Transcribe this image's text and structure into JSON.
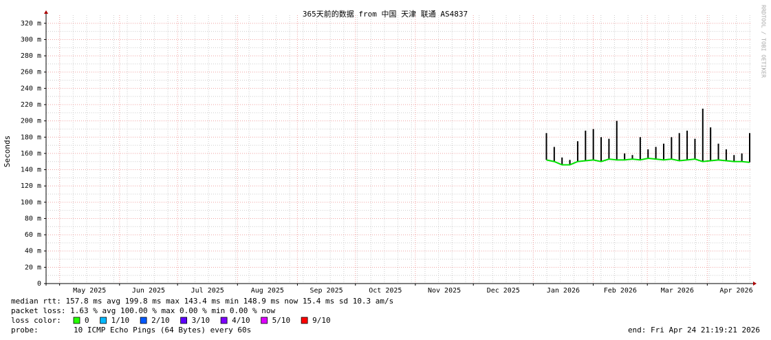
{
  "chart_data": {
    "type": "smokeping",
    "title": "365天前的数据 from 中国 天津 联通 AS4837",
    "y_label": "Seconds",
    "side_label": "RRDTOOL / TOBI OETIKER",
    "ylim": [
      0,
      0.33
    ],
    "yticks": [
      0,
      {
        "value": 0.02,
        "label": "20 m"
      },
      {
        "value": 0.04,
        "label": "40 m"
      },
      {
        "value": 0.06,
        "label": "60 m"
      },
      {
        "value": 0.08,
        "label": "80 m"
      },
      {
        "value": 0.1,
        "label": "100 m"
      },
      {
        "value": 0.12,
        "label": "120 m"
      },
      {
        "value": 0.14,
        "label": "140 m"
      },
      {
        "value": 0.16,
        "label": "160 m"
      },
      {
        "value": 0.18,
        "label": "180 m"
      },
      {
        "value": 0.2,
        "label": "200 m"
      },
      {
        "value": 0.22,
        "label": "220 m"
      },
      {
        "value": 0.24,
        "label": "240 m"
      },
      {
        "value": 0.26,
        "label": "260 m"
      },
      {
        "value": 0.28,
        "label": "280 m"
      },
      {
        "value": 0.3,
        "label": "300 m"
      },
      {
        "value": 0.32,
        "label": "320 m"
      }
    ],
    "xlim": [
      "2025-04-24",
      "2026-04-24"
    ],
    "xticks": [
      {
        "value": "2025-05",
        "label": "May 2025"
      },
      {
        "value": "2025-06",
        "label": "Jun 2025"
      },
      {
        "value": "2025-07",
        "label": "Jul 2025"
      },
      {
        "value": "2025-08",
        "label": "Aug 2025"
      },
      {
        "value": "2025-09",
        "label": "Sep 2025"
      },
      {
        "value": "2025-10",
        "label": "Oct 2025"
      },
      {
        "value": "2025-11",
        "label": "Nov 2025"
      },
      {
        "value": "2025-12",
        "label": "Dec 2025"
      },
      {
        "value": "2026-01",
        "label": "Jan 2026"
      },
      {
        "value": "2026-02",
        "label": "Feb 2026"
      },
      {
        "value": "2026-03",
        "label": "Mar 2026"
      },
      {
        "value": "2026-04",
        "label": "Apr 2026"
      }
    ],
    "grid": true,
    "median_color": "#00e000",
    "smoke_color": "#000000",
    "median": [
      null,
      null,
      null,
      null,
      null,
      null,
      null,
      null,
      null,
      null,
      null,
      null,
      null,
      null,
      null,
      null,
      null,
      null,
      null,
      null,
      null,
      null,
      null,
      null,
      null,
      null,
      null,
      null,
      null,
      null,
      null,
      null,
      null,
      null,
      null,
      null,
      null,
      null,
      null,
      null,
      null,
      null,
      null,
      null,
      null,
      null,
      null,
      null,
      null,
      null,
      null,
      null,
      null,
      null,
      null,
      null,
      null,
      null,
      null,
      null,
      null,
      null,
      null,
      null,
      0.152,
      0.15,
      0.146,
      0.146,
      0.15,
      0.151,
      0.152,
      0.15,
      0.153,
      0.152,
      0.152,
      0.153,
      0.152,
      0.154,
      0.153,
      0.152,
      0.153,
      0.151,
      0.152,
      0.153,
      0.15,
      0.151,
      0.152,
      0.151,
      0.15,
      0.15,
      0.149
    ],
    "max_values": [
      null,
      null,
      null,
      null,
      null,
      null,
      null,
      null,
      null,
      null,
      null,
      null,
      null,
      null,
      null,
      null,
      null,
      null,
      null,
      null,
      null,
      null,
      null,
      null,
      null,
      null,
      null,
      null,
      null,
      null,
      null,
      null,
      null,
      null,
      null,
      null,
      null,
      null,
      null,
      null,
      null,
      null,
      null,
      null,
      null,
      null,
      null,
      null,
      null,
      null,
      null,
      null,
      null,
      null,
      null,
      null,
      null,
      null,
      null,
      null,
      null,
      null,
      null,
      null,
      0.185,
      0.168,
      0.155,
      0.152,
      0.175,
      0.188,
      0.19,
      0.18,
      0.178,
      0.2,
      0.16,
      0.158,
      0.18,
      0.165,
      0.168,
      0.172,
      0.18,
      0.185,
      0.188,
      0.178,
      0.215,
      0.192,
      0.172,
      0.165,
      0.158,
      0.16,
      0.185
    ],
    "stats": [
      "median rtt:  157.8 ms avg  199.8 ms max  143.4 ms min  148.9 ms now  15.4 ms sd  10.3   am/s",
      "packet loss: 1.63 % avg  100.00 % max  0.00 % min  0.00 % now"
    ],
    "loss_color_label": "loss color:",
    "loss_colors": [
      {
        "label": "0",
        "color": "#26ff00"
      },
      {
        "label": "1/10",
        "color": "#00b8ff"
      },
      {
        "label": "2/10",
        "color": "#0059ff"
      },
      {
        "label": "3/10",
        "color": "#5e00ff"
      },
      {
        "label": "4/10",
        "color": "#7e00ff"
      },
      {
        "label": "5/10",
        "color": "#dd00ff"
      },
      {
        "label": "9/10",
        "color": "#ff0000"
      }
    ],
    "probe_label": "probe:",
    "probe": "10 ICMP Echo Pings (64 Bytes) every 60s",
    "end": "end: Fri Apr 24 21:19:21 2026"
  }
}
